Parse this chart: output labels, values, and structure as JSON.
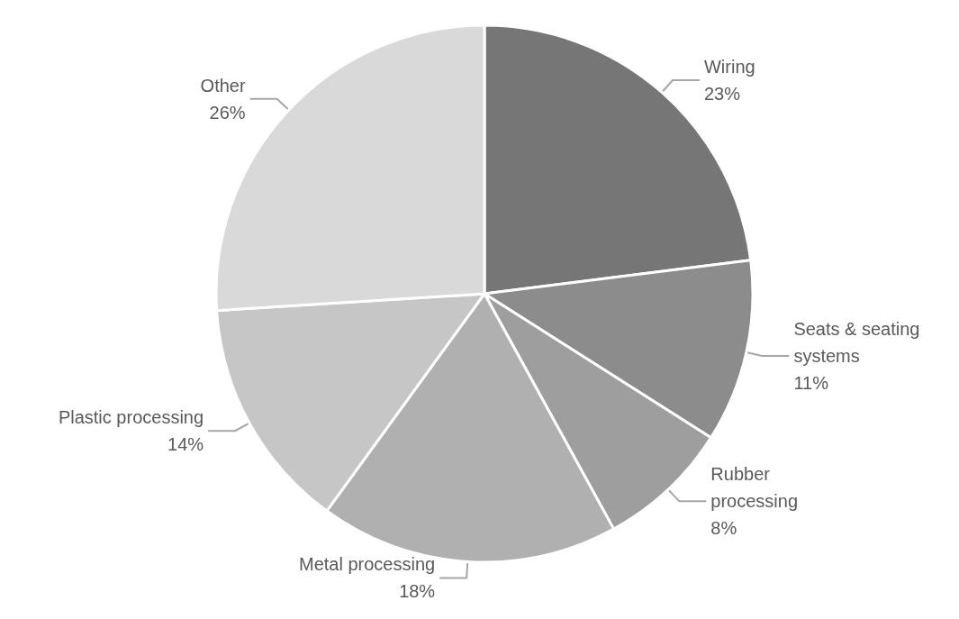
{
  "chart_data": {
    "type": "pie",
    "categories": [
      "Wiring",
      "Seats & seating systems",
      "Rubber processing",
      "Metal processing",
      "Plastic processing",
      "Other"
    ],
    "values": [
      23,
      11,
      8,
      18,
      14,
      26
    ],
    "value_labels": [
      "23%",
      "11%",
      "8%",
      "18%",
      "14%",
      "26%"
    ],
    "colors": [
      "#767676",
      "#8c8c8c",
      "#9e9e9e",
      "#b0b0b0",
      "#c6c6c6",
      "#d9d9d9"
    ],
    "legend": false
  }
}
